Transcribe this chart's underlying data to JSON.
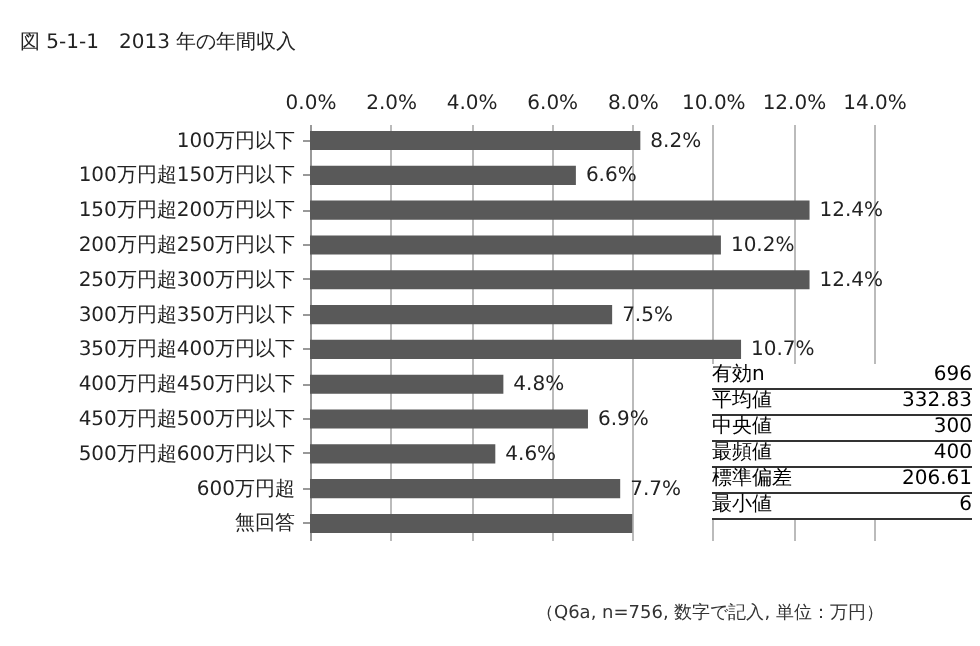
{
  "chart_data": {
    "type": "bar",
    "orientation": "horizontal",
    "title": "図 5-1-1　2013 年の年間収入",
    "categories": [
      "100万円以下",
      "100万円超150万円以下",
      "150万円超200万円以下",
      "200万円超250万円以下",
      "250万円超300万円以下",
      "300万円超350万円以下",
      "350万円超400万円以下",
      "400万円超450万円以下",
      "450万円超500万円以下",
      "500万円超600万円以下",
      "600万円超",
      "無回答"
    ],
    "values": [
      8.2,
      6.6,
      12.4,
      10.2,
      12.4,
      7.5,
      10.7,
      4.8,
      6.9,
      4.6,
      7.7,
      8.0
    ],
    "value_labels": [
      "8.2%",
      "6.6%",
      "12.4%",
      "10.2%",
      "12.4%",
      "7.5%",
      "10.7%",
      "4.8%",
      "6.9%",
      "4.6%",
      "7.7%",
      null
    ],
    "color": "#595959",
    "xlim": [
      0,
      14
    ],
    "xticks": [
      {
        "value": 0,
        "label": "0.0%"
      },
      {
        "value": 2,
        "label": "2.0%"
      },
      {
        "value": 4,
        "label": "4.0%"
      },
      {
        "value": 6,
        "label": "6.0%"
      },
      {
        "value": 8,
        "label": "8.0%"
      },
      {
        "value": 10,
        "label": "10.0%"
      },
      {
        "value": 12,
        "label": "12.0%"
      },
      {
        "value": 14,
        "label": "14.0%"
      }
    ],
    "grid": "x",
    "annotations": [
      "有効n 696",
      "平均値 332.83",
      "中央値 300",
      "最頻値 400",
      "標準偏差 206.61",
      "最小値 6",
      "（Q6a, n=756, 数字で記入, 単位：万円）"
    ]
  }
}
